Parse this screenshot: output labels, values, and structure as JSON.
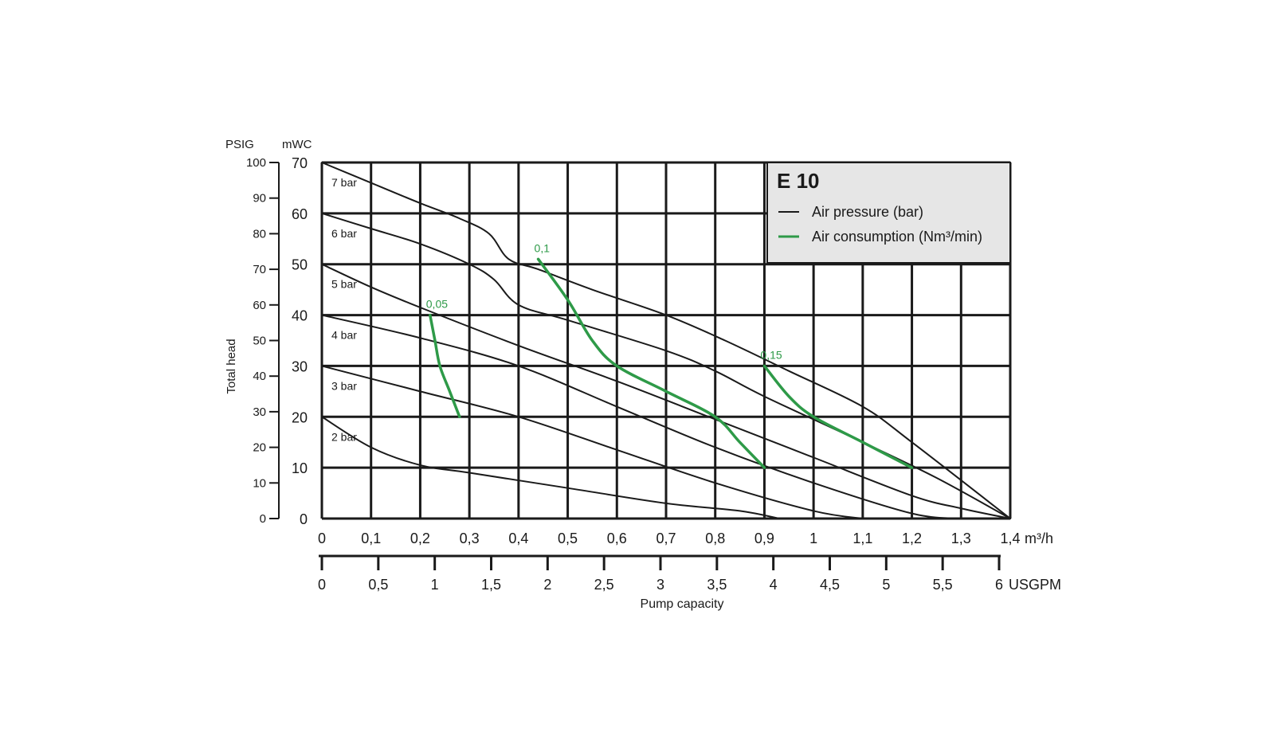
{
  "chart_data": {
    "type": "line",
    "title": "E 10",
    "xlabel": "Pump capacity",
    "ylabel": "Total head",
    "x_unit": "m³/h",
    "x_unit_secondary": "USGPM",
    "y_unit": "mWC",
    "y_unit_secondary": "PSIG",
    "xlim": [
      0,
      1.4
    ],
    "ylim": [
      0,
      70
    ],
    "grid": true,
    "legend_position": "top-right",
    "x_ticks": [
      "0",
      "0,1",
      "0,2",
      "0,3",
      "0,4",
      "0,5",
      "0,6",
      "0,7",
      "0,8",
      "0,9",
      "1",
      "1,1",
      "1,2",
      "1,3",
      "1,4"
    ],
    "x_tick_values": [
      0,
      0.1,
      0.2,
      0.3,
      0.4,
      0.5,
      0.6,
      0.7,
      0.8,
      0.9,
      1.0,
      1.1,
      1.2,
      1.3,
      1.4
    ],
    "x2_ticks": [
      "0",
      "0,5",
      "1",
      "1,5",
      "2",
      "2,5",
      "3",
      "3,5",
      "4",
      "4,5",
      "5",
      "5,5",
      "6"
    ],
    "x2_tick_values": [
      0,
      0.5,
      1,
      1.5,
      2,
      2.5,
      3,
      3.5,
      4,
      4.5,
      5,
      5.5,
      6
    ],
    "y_ticks": [
      "0",
      "10",
      "20",
      "30",
      "40",
      "50",
      "60",
      "70"
    ],
    "y_tick_values": [
      0,
      10,
      20,
      30,
      40,
      50,
      60,
      70
    ],
    "y2_ticks": [
      "0",
      "10",
      "20",
      "30",
      "40",
      "50",
      "60",
      "70",
      "80",
      "90",
      "100"
    ],
    "y2_tick_values": [
      0,
      10,
      20,
      30,
      40,
      50,
      60,
      70,
      80,
      90,
      100
    ],
    "legend": [
      {
        "label": "Air pressure (bar)",
        "color": "#1a1a1a"
      },
      {
        "label": "Air consumption (Nm³/min)",
        "color": "#2e9a48"
      }
    ],
    "series": [
      {
        "group": "pressure",
        "label": "7 bar",
        "x": [
          0,
          0.1,
          0.2,
          0.28,
          0.34,
          0.38,
          0.44,
          0.55,
          0.7,
          0.82,
          0.95,
          1.1,
          1.2,
          1.4
        ],
        "y": [
          70,
          66,
          62,
          59,
          56,
          51,
          49,
          45,
          40,
          35,
          29,
          22,
          15,
          0
        ]
      },
      {
        "group": "pressure",
        "label": "6 bar",
        "x": [
          0,
          0.1,
          0.2,
          0.3,
          0.35,
          0.4,
          0.5,
          0.7,
          0.8,
          0.9,
          1.1,
          1.25,
          1.4
        ],
        "y": [
          60,
          57,
          54,
          50,
          47,
          42,
          39,
          33,
          29,
          24,
          15,
          8,
          0
        ]
      },
      {
        "group": "pressure",
        "label": "5 bar",
        "x": [
          0,
          0.1,
          0.2,
          0.4,
          0.6,
          0.8,
          1.0,
          1.2,
          1.3,
          1.4
        ],
        "y": [
          50,
          45.5,
          41.5,
          34,
          27,
          19.5,
          12,
          4.5,
          2,
          0
        ]
      },
      {
        "group": "pressure",
        "label": "4 bar",
        "x": [
          0,
          0.2,
          0.4,
          0.6,
          0.8,
          1.0,
          1.2,
          1.3
        ],
        "y": [
          40,
          35.5,
          30,
          22,
          14,
          7,
          1,
          0
        ]
      },
      {
        "group": "pressure",
        "label": "3 bar",
        "x": [
          0,
          0.2,
          0.4,
          0.6,
          0.8,
          1.0,
          1.1
        ],
        "y": [
          30,
          25,
          20,
          13.5,
          7,
          1.5,
          0
        ]
      },
      {
        "group": "pressure",
        "label": "2 bar",
        "x": [
          0,
          0.1,
          0.2,
          0.3,
          0.5,
          0.7,
          0.85,
          0.93
        ],
        "y": [
          20,
          14,
          10.5,
          9,
          6,
          3,
          1.5,
          0
        ]
      },
      {
        "group": "consumption",
        "label": "0,05",
        "x": [
          0.22,
          0.23,
          0.24,
          0.26,
          0.28
        ],
        "y": [
          40,
          35,
          30,
          25,
          20
        ]
      },
      {
        "group": "consumption",
        "label": "0,1",
        "x": [
          0.44,
          0.5,
          0.55,
          0.6,
          0.7,
          0.8,
          0.85,
          0.9
        ],
        "y": [
          51,
          43,
          35,
          30,
          25,
          20,
          15,
          10
        ]
      },
      {
        "group": "consumption",
        "label": "0,15",
        "x": [
          0.9,
          0.95,
          1.0,
          1.1,
          1.2
        ],
        "y": [
          30,
          24,
          20,
          15,
          10
        ]
      }
    ]
  }
}
